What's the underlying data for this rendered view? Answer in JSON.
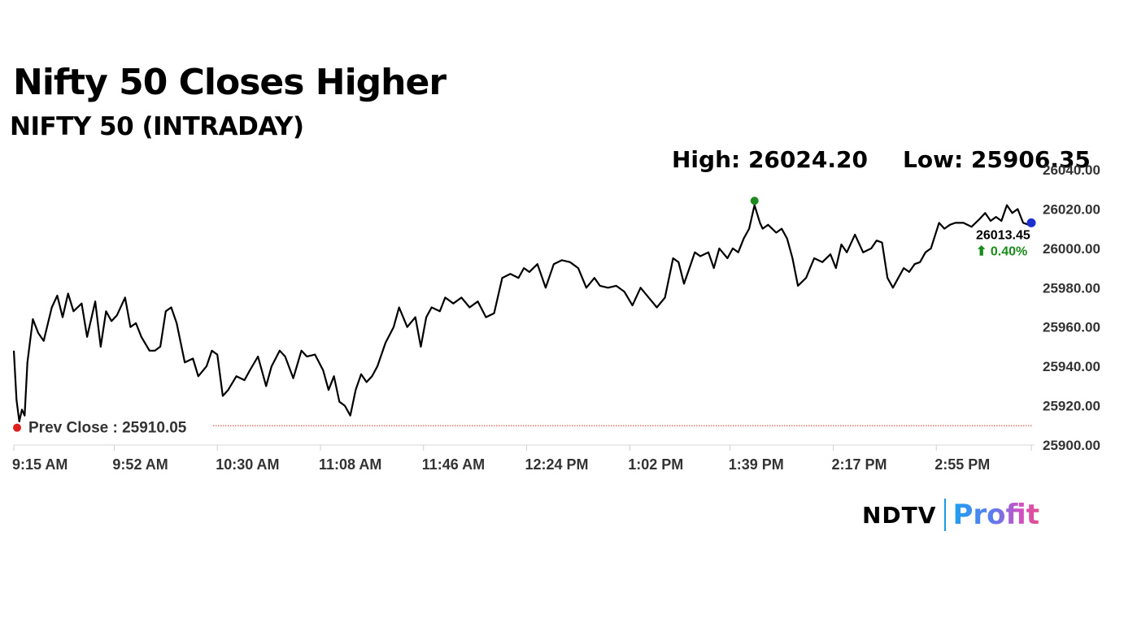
{
  "header": {
    "title": "Nifty 50 Closes Higher",
    "subtitle": "NIFTY 50 (INTRADAY)",
    "high_text": "High: 26024.20",
    "low_text": "Low: 25906.35"
  },
  "logo": {
    "brand": "NDTV",
    "product": "Profit"
  },
  "chart_data": {
    "type": "line",
    "ylim": [
      25900,
      26040
    ],
    "yticks": [
      "25900.00",
      "25920.00",
      "25940.00",
      "25960.00",
      "25980.00",
      "26000.00",
      "26020.00",
      "26040.00"
    ],
    "yticks_values": [
      25900,
      25920,
      25940,
      25960,
      25980,
      26000,
      26020,
      26040
    ],
    "xticks": [
      "9:15 AM",
      "9:52 AM",
      "10:30 AM",
      "11:08 AM",
      "11:46 AM",
      "12:24 PM",
      "1:02 PM",
      "1:39 PM",
      "2:17 PM",
      "2:55 PM"
    ],
    "x_minutes": [
      0,
      37,
      75,
      113,
      151,
      189,
      227,
      264,
      302,
      340
    ],
    "session_minutes": [
      0,
      375
    ],
    "prev_close": 25910.05,
    "prev_close_label": "Prev Close : 25910.05",
    "high": 26024.2,
    "low": 25906.35,
    "last_value": "26013.45",
    "last_change": "⬆ 0.40%",
    "series": [
      {
        "color": "#000000",
        "x": [
          0,
          1,
          2,
          3,
          4,
          5,
          7,
          9,
          11,
          14,
          16,
          18,
          20,
          22,
          25,
          27,
          30,
          32,
          34,
          36,
          38,
          41,
          43,
          45,
          47,
          50,
          52,
          54,
          56,
          58,
          60,
          63,
          66,
          68,
          71,
          73,
          75,
          77,
          79,
          82,
          85,
          87,
          90,
          93,
          95,
          98,
          100,
          103,
          106,
          108,
          111,
          114,
          116,
          118,
          120,
          122,
          124,
          126,
          128,
          130,
          132,
          134,
          137,
          140,
          142,
          145,
          148,
          150,
          152,
          154,
          157,
          159,
          162,
          165,
          168,
          171,
          174,
          177,
          180,
          183,
          186,
          188,
          190,
          193,
          196,
          199,
          202,
          205,
          208,
          211,
          214,
          216,
          219,
          222,
          225,
          228,
          231,
          234,
          237,
          240,
          243,
          245,
          247,
          249,
          251,
          253,
          256,
          258,
          260,
          263,
          265,
          267,
          269,
          271,
          273,
          275,
          276,
          278,
          281,
          283,
          285,
          287,
          289,
          292,
          295,
          298,
          301,
          303,
          305,
          307,
          310,
          313,
          316,
          318,
          320,
          322,
          324,
          326,
          328,
          330,
          332,
          334,
          336,
          338,
          341,
          343,
          345,
          347,
          350,
          353,
          356,
          358,
          360,
          362,
          364,
          366,
          368,
          370,
          372,
          374,
          375
        ],
        "y": [
          25948,
          25923,
          25912,
          25918,
          25915,
          25942,
          25964,
          25957,
          25953,
          25970,
          25976,
          25965,
          25977,
          25968,
          25972,
          25955,
          25973,
          25950,
          25968,
          25963,
          25966,
          25975,
          25960,
          25962,
          25955,
          25948,
          25948,
          25950,
          25968,
          25970,
          25962,
          25942,
          25944,
          25935,
          25940,
          25948,
          25946,
          25925,
          25928,
          25935,
          25933,
          25938,
          25945,
          25930,
          25940,
          25948,
          25945,
          25934,
          25948,
          25945,
          25946,
          25938,
          25928,
          25935,
          25922,
          25920,
          25915,
          25928,
          25936,
          25932,
          25935,
          25940,
          25952,
          25960,
          25970,
          25960,
          25965,
          25950,
          25965,
          25970,
          25968,
          25975,
          25972,
          25975,
          25970,
          25973,
          25965,
          25967,
          25985,
          25987,
          25985,
          25990,
          25988,
          25992,
          25980,
          25992,
          25994,
          25993,
          25990,
          25980,
          25985,
          25981,
          25980,
          25981,
          25978,
          25971,
          25980,
          25975,
          25970,
          25975,
          25995,
          25993,
          25982,
          25990,
          25998,
          25996,
          25998,
          25990,
          26000,
          25995,
          26000,
          25998,
          26005,
          26010,
          26022,
          26013,
          26010,
          26012,
          26008,
          26010,
          26005,
          25995,
          25981,
          25985,
          25995,
          25993,
          25997,
          25990,
          26002,
          25998,
          26007,
          25998,
          26000,
          26004,
          26003,
          25985,
          25980,
          25985,
          25990,
          25988,
          25992,
          25993,
          25998,
          26000,
          26013,
          26010,
          26012,
          26013,
          26013,
          26011,
          26015,
          26018,
          26014,
          26016,
          26014,
          26022,
          26018,
          26020,
          26013,
          26012,
          26013
        ]
      }
    ]
  }
}
